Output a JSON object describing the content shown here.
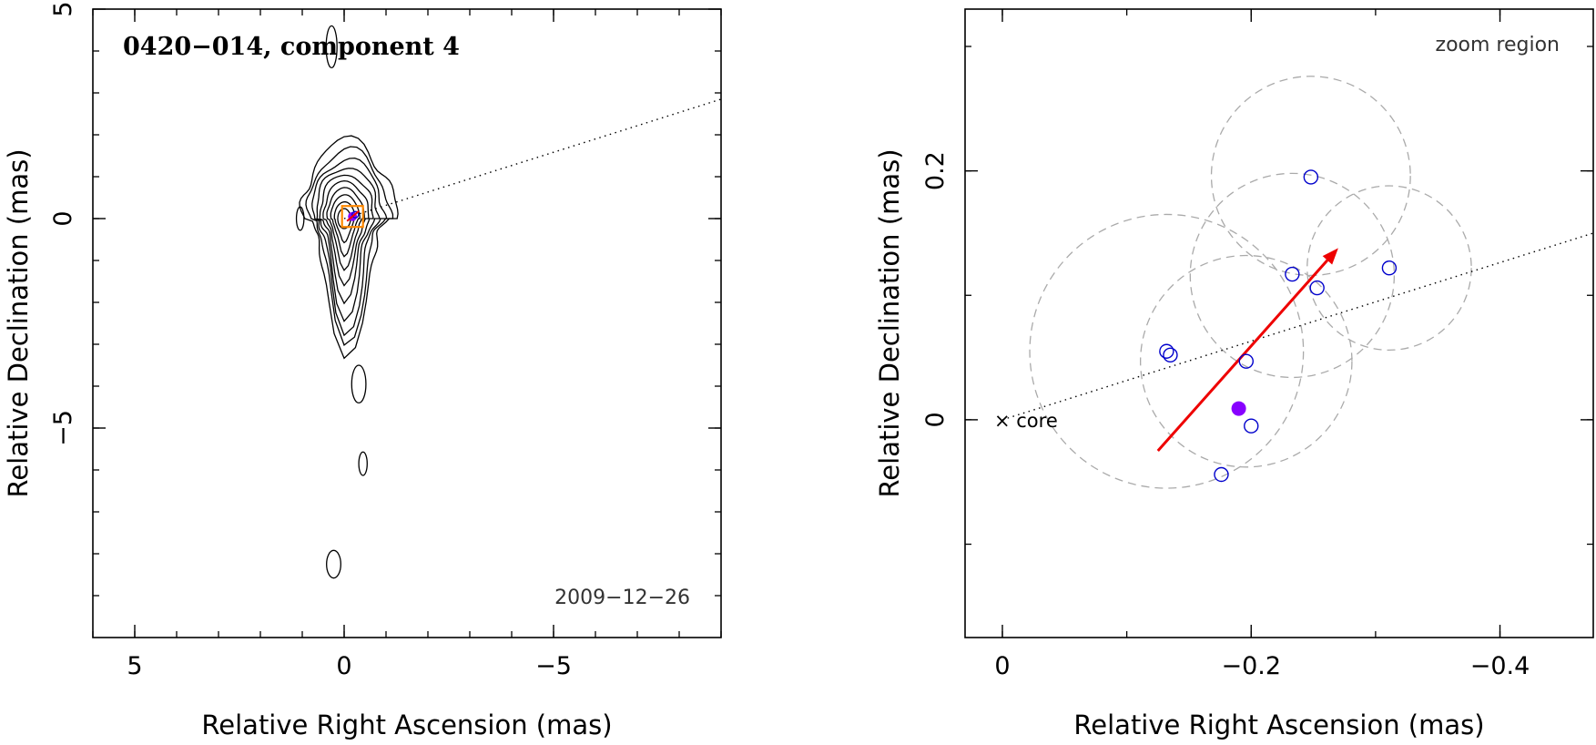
{
  "colors": {
    "background": "#ffffff",
    "axis": "#000000",
    "contour": "#000000",
    "model_marker": "#0000cc",
    "average_marker": "#8800ff",
    "motion_vector": "#ee0000",
    "zoom_box": "#ff8800",
    "uncertainty_circle": "#aaaaaa"
  },
  "chart_data": [
    {
      "type": "contour",
      "panel": "left",
      "title": "0420−014, component 4",
      "date_label": "2009−12−26",
      "xlabel": "Relative Right Ascension (mas)",
      "ylabel": "Relative Declination (mas)",
      "xlim": [
        6,
        -9
      ],
      "ylim": [
        -10,
        5
      ],
      "xticks": [
        {
          "value": 5,
          "label": "5"
        },
        {
          "value": 0,
          "label": "0"
        },
        {
          "value": -5,
          "label": "−5"
        }
      ],
      "yticks": [
        {
          "value": 5,
          "label": "5"
        },
        {
          "value": 0,
          "label": "0"
        },
        {
          "value": -5,
          "label": "−5"
        }
      ],
      "jet_direction_line": {
        "from": [
          0,
          0
        ],
        "to": [
          -9,
          2.85
        ]
      },
      "zoom_box": {
        "center": [
          -0.2,
          0.05
        ],
        "half_size": 0.25
      },
      "contour_levels": 10,
      "islands": [
        {
          "center": [
            0.3,
            4.1
          ],
          "rx": 0.13,
          "ry": 0.5
        },
        {
          "center": [
            1.05,
            0.0
          ],
          "rx": 0.09,
          "ry": 0.28
        },
        {
          "center": [
            -0.35,
            -3.95
          ],
          "rx": 0.17,
          "ry": 0.45
        },
        {
          "center": [
            -0.45,
            -5.85
          ],
          "rx": 0.1,
          "ry": 0.28
        },
        {
          "center": [
            0.25,
            -8.25
          ],
          "rx": 0.17,
          "ry": 0.33
        }
      ]
    },
    {
      "type": "scatter",
      "panel": "right",
      "title": "zoom region",
      "xlabel": "Relative Right Ascension (mas)",
      "ylabel": "Relative Declination (mas)",
      "xlim": [
        0.03,
        -0.475
      ],
      "ylim": [
        -0.175,
        0.33
      ],
      "xticks": [
        {
          "value": 0,
          "label": "0"
        },
        {
          "value": -0.2,
          "label": "−0.2"
        },
        {
          "value": -0.4,
          "label": "−0.4"
        }
      ],
      "yticks": [
        {
          "value": 0,
          "label": "0"
        },
        {
          "value": 0.2,
          "label": "0.2"
        }
      ],
      "core": {
        "x": 0,
        "y": 0,
        "label": "× core"
      },
      "jet_direction_line": {
        "from": [
          0,
          0
        ],
        "to": [
          -0.475,
          0.15
        ]
      },
      "positions": [
        {
          "x": -0.132,
          "y": 0.055
        },
        {
          "x": -0.135,
          "y": 0.052
        },
        {
          "x": -0.196,
          "y": 0.047
        },
        {
          "x": -0.2,
          "y": -0.005
        },
        {
          "x": -0.176,
          "y": -0.044
        },
        {
          "x": -0.233,
          "y": 0.117
        },
        {
          "x": -0.253,
          "y": 0.106
        },
        {
          "x": -0.248,
          "y": 0.195
        },
        {
          "x": -0.311,
          "y": 0.122
        }
      ],
      "mean_position": {
        "x": -0.19,
        "y": 0.009
      },
      "uncertainty_circles": [
        {
          "x": -0.132,
          "y": 0.055,
          "r": 0.11
        },
        {
          "x": -0.196,
          "y": 0.047,
          "r": 0.085
        },
        {
          "x": -0.233,
          "y": 0.116,
          "r": 0.082
        },
        {
          "x": -0.248,
          "y": 0.196,
          "r": 0.08
        },
        {
          "x": -0.311,
          "y": 0.122,
          "r": 0.066
        }
      ],
      "motion_vector": {
        "from": [
          -0.125,
          -0.025
        ],
        "to": [
          -0.27,
          0.138
        ]
      }
    }
  ]
}
